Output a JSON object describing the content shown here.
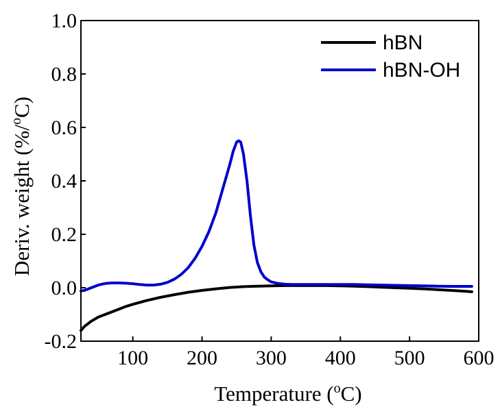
{
  "chart_data": {
    "type": "line",
    "xlabel_prefix": "Temperature (",
    "xlabel_sup": "o",
    "xlabel_suffix": "C)",
    "ylabel_prefix": "Deriv. weight (%/",
    "ylabel_sup": "o",
    "ylabel_suffix": "C)",
    "xlim": [
      25,
      600
    ],
    "ylim": [
      -0.2,
      1.0
    ],
    "xticks": [
      100,
      200,
      300,
      400,
      500,
      600
    ],
    "yticks": [
      -0.2,
      0.0,
      0.2,
      0.4,
      0.6,
      0.8,
      1.0
    ],
    "xtick_labels": [
      "100",
      "200",
      "300",
      "400",
      "500",
      "600"
    ],
    "ytick_labels": [
      "-0.2",
      "0.0",
      "0.2",
      "0.4",
      "0.6",
      "0.8",
      "1.0"
    ],
    "grid": false,
    "legend_position": "top-right",
    "series": [
      {
        "name": "hBN",
        "color": "#000000",
        "x": [
          25,
          30,
          40,
          50,
          60,
          70,
          80,
          90,
          100,
          120,
          140,
          160,
          180,
          200,
          220,
          240,
          260,
          280,
          300,
          320,
          340,
          360,
          380,
          400,
          420,
          440,
          460,
          480,
          500,
          520,
          540,
          560,
          580,
          590
        ],
        "y": [
          -0.16,
          -0.145,
          -0.125,
          -0.11,
          -0.1,
          -0.09,
          -0.08,
          -0.07,
          -0.062,
          -0.048,
          -0.036,
          -0.026,
          -0.017,
          -0.01,
          -0.004,
          0.001,
          0.004,
          0.006,
          0.007,
          0.008,
          0.008,
          0.008,
          0.008,
          0.007,
          0.006,
          0.004,
          0.002,
          0.0,
          -0.002,
          -0.004,
          -0.007,
          -0.01,
          -0.013,
          -0.015
        ]
      },
      {
        "name": "hBN-OH",
        "color": "#0000cc",
        "x": [
          25,
          30,
          40,
          50,
          60,
          70,
          80,
          90,
          100,
          110,
          120,
          130,
          140,
          150,
          160,
          170,
          180,
          190,
          200,
          210,
          220,
          230,
          240,
          245,
          250,
          253,
          256,
          260,
          265,
          270,
          275,
          280,
          285,
          290,
          295,
          300,
          310,
          320,
          330,
          340,
          360,
          380,
          400,
          420,
          440,
          460,
          480,
          500,
          520,
          540,
          560,
          580,
          590
        ],
        "y": [
          -0.012,
          -0.01,
          0.0,
          0.01,
          0.016,
          0.018,
          0.018,
          0.017,
          0.015,
          0.012,
          0.01,
          0.01,
          0.013,
          0.02,
          0.032,
          0.05,
          0.075,
          0.11,
          0.155,
          0.21,
          0.28,
          0.37,
          0.46,
          0.51,
          0.545,
          0.55,
          0.545,
          0.5,
          0.4,
          0.27,
          0.16,
          0.095,
          0.06,
          0.04,
          0.03,
          0.022,
          0.016,
          0.013,
          0.012,
          0.012,
          0.012,
          0.012,
          0.012,
          0.012,
          0.011,
          0.01,
          0.009,
          0.008,
          0.007,
          0.006,
          0.005,
          0.005,
          0.005
        ]
      }
    ]
  }
}
